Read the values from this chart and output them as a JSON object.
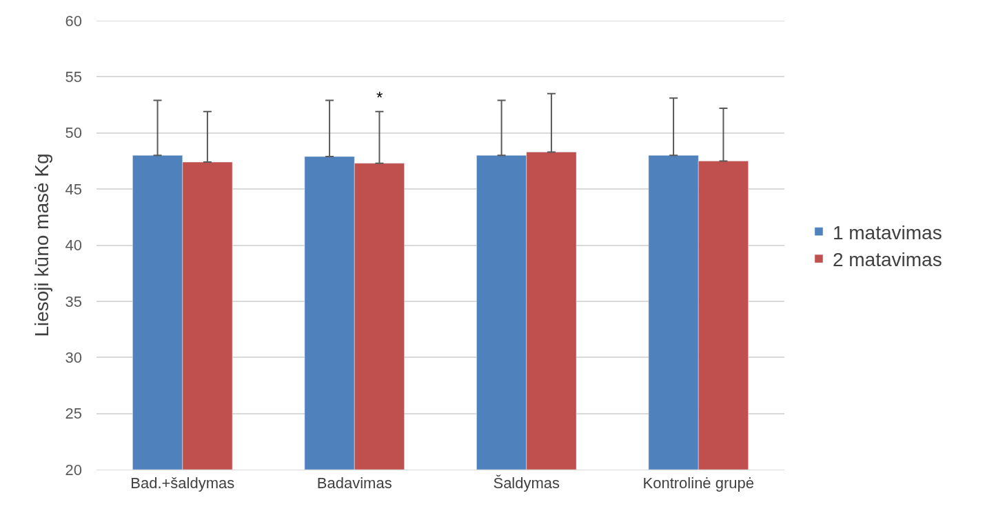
{
  "chart_data": {
    "type": "bar",
    "ylabel": "Liesoji kūno masė Kg",
    "categories": [
      "Bad.+šaldymas",
      "Badavimas",
      "Šaldymas",
      "Kontrolinė grupė"
    ],
    "series": [
      {
        "name": "1 matavimas",
        "color": "#4f81bd",
        "values": [
          48.0,
          47.9,
          48.0,
          48.0
        ],
        "errors": [
          [
            48.0,
            52.9
          ],
          [
            47.9,
            52.9
          ],
          [
            48.0,
            52.9
          ],
          [
            48.0,
            53.1
          ]
        ]
      },
      {
        "name": "2 matavimas",
        "color": "#c0504d",
        "values": [
          47.4,
          47.3,
          48.3,
          47.5
        ],
        "errors": [
          [
            47.4,
            51.9
          ],
          [
            47.3,
            51.9
          ],
          [
            48.3,
            53.5
          ],
          [
            47.5,
            52.2
          ]
        ]
      }
    ],
    "annotations": [
      "*"
    ],
    "ylim": [
      20,
      60
    ],
    "yticks": [
      20,
      25,
      30,
      35,
      40,
      45,
      50,
      55,
      60
    ],
    "grid": "y",
    "legend": "right"
  }
}
